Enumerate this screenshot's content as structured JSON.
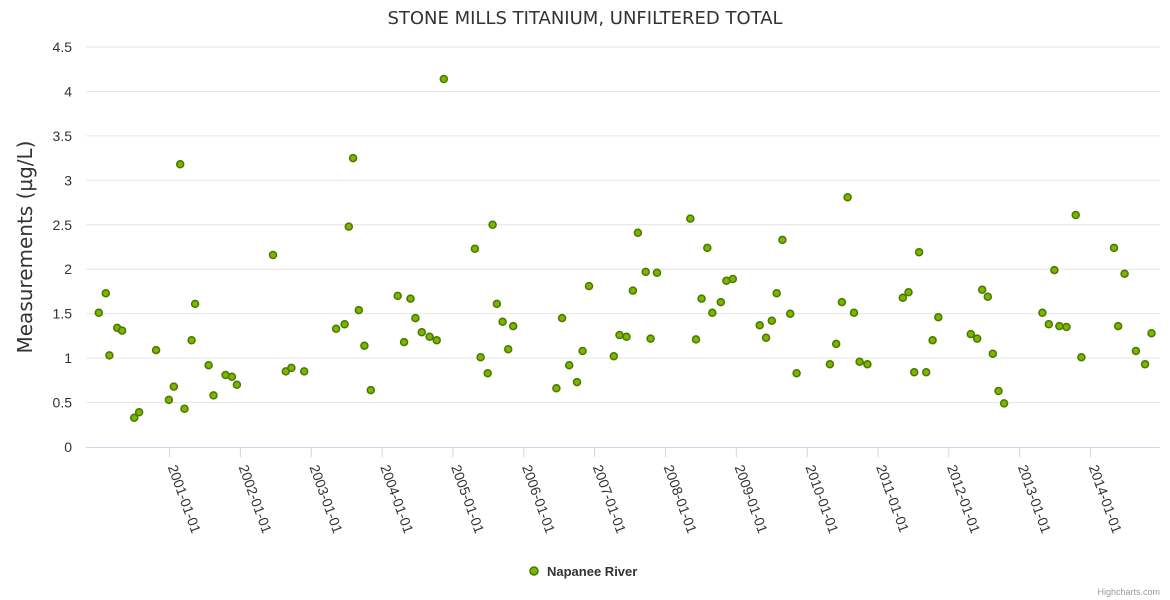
{
  "chart_data": {
    "type": "scatter",
    "title": "STONE MILLS TITANIUM, UNFILTERED TOTAL",
    "ylabel": "Measurements (µg/L)",
    "xlabel": "",
    "ylim": [
      0,
      4.5
    ],
    "yticks": [
      "0",
      "0.5",
      "1",
      "1.5",
      "2",
      "2.5",
      "3",
      "3.5",
      "4",
      "4.5"
    ],
    "xlim": [
      1999.82,
      2014.98
    ],
    "xticks": [
      {
        "year": 2001,
        "label": "2001-01-01"
      },
      {
        "year": 2002,
        "label": "2002-01-01"
      },
      {
        "year": 2003,
        "label": "2003-01-01"
      },
      {
        "year": 2004,
        "label": "2004-01-01"
      },
      {
        "year": 2005,
        "label": "2005-01-01"
      },
      {
        "year": 2006,
        "label": "2006-01-01"
      },
      {
        "year": 2007,
        "label": "2007-01-01"
      },
      {
        "year": 2008,
        "label": "2008-01-01"
      },
      {
        "year": 2009,
        "label": "2009-01-01"
      },
      {
        "year": 2010,
        "label": "2010-01-01"
      },
      {
        "year": 2011,
        "label": "2011-01-01"
      },
      {
        "year": 2012,
        "label": "2012-01-01"
      },
      {
        "year": 2013,
        "label": "2013-01-01"
      },
      {
        "year": 2014,
        "label": "2014-01-01"
      }
    ],
    "grid": true,
    "legend_position": "bottom-center",
    "series": [
      {
        "name": "Napanee River",
        "color": "#7cb500",
        "border_color": "#4a7800",
        "points": [
          [
            2000.0,
            1.51
          ],
          [
            2000.1,
            1.73
          ],
          [
            2000.15,
            1.03
          ],
          [
            2000.26,
            1.34
          ],
          [
            2000.33,
            1.31
          ],
          [
            2000.5,
            0.33
          ],
          [
            2000.57,
            0.39
          ],
          [
            2000.81,
            1.09
          ],
          [
            2000.99,
            0.53
          ],
          [
            2001.06,
            0.68
          ],
          [
            2001.15,
            3.18
          ],
          [
            2001.21,
            0.43
          ],
          [
            2001.31,
            1.2
          ],
          [
            2001.36,
            1.61
          ],
          [
            2001.55,
            0.92
          ],
          [
            2001.62,
            0.58
          ],
          [
            2001.79,
            0.81
          ],
          [
            2001.88,
            0.79
          ],
          [
            2001.95,
            0.7
          ],
          [
            2002.46,
            2.16
          ],
          [
            2002.64,
            0.85
          ],
          [
            2002.72,
            0.89
          ],
          [
            2002.9,
            0.85
          ],
          [
            2003.35,
            1.33
          ],
          [
            2003.47,
            1.38
          ],
          [
            2003.53,
            2.48
          ],
          [
            2003.59,
            3.25
          ],
          [
            2003.67,
            1.54
          ],
          [
            2003.75,
            1.14
          ],
          [
            2003.84,
            0.64
          ],
          [
            2004.22,
            1.7
          ],
          [
            2004.31,
            1.18
          ],
          [
            2004.4,
            1.67
          ],
          [
            2004.47,
            1.45
          ],
          [
            2004.56,
            1.29
          ],
          [
            2004.67,
            1.24
          ],
          [
            2004.77,
            1.2
          ],
          [
            2004.87,
            4.14
          ],
          [
            2005.31,
            2.23
          ],
          [
            2005.39,
            1.01
          ],
          [
            2005.49,
            0.83
          ],
          [
            2005.56,
            2.5
          ],
          [
            2005.62,
            1.61
          ],
          [
            2005.7,
            1.41
          ],
          [
            2005.78,
            1.1
          ],
          [
            2005.85,
            1.36
          ],
          [
            2006.46,
            0.66
          ],
          [
            2006.54,
            1.45
          ],
          [
            2006.64,
            0.92
          ],
          [
            2006.75,
            0.73
          ],
          [
            2006.83,
            1.08
          ],
          [
            2006.92,
            1.81
          ],
          [
            2007.27,
            1.02
          ],
          [
            2007.35,
            1.26
          ],
          [
            2007.45,
            1.24
          ],
          [
            2007.54,
            1.76
          ],
          [
            2007.61,
            2.41
          ],
          [
            2007.72,
            1.97
          ],
          [
            2007.79,
            1.22
          ],
          [
            2007.88,
            1.96
          ],
          [
            2008.35,
            2.57
          ],
          [
            2008.43,
            1.21
          ],
          [
            2008.51,
            1.67
          ],
          [
            2008.59,
            2.24
          ],
          [
            2008.66,
            1.51
          ],
          [
            2008.78,
            1.63
          ],
          [
            2008.86,
            1.87
          ],
          [
            2008.95,
            1.89
          ],
          [
            2009.33,
            1.37
          ],
          [
            2009.42,
            1.23
          ],
          [
            2009.5,
            1.42
          ],
          [
            2009.57,
            1.73
          ],
          [
            2009.65,
            2.33
          ],
          [
            2009.76,
            1.5
          ],
          [
            2009.85,
            0.83
          ],
          [
            2010.32,
            0.93
          ],
          [
            2010.41,
            1.16
          ],
          [
            2010.49,
            1.63
          ],
          [
            2010.57,
            2.81
          ],
          [
            2010.66,
            1.51
          ],
          [
            2010.74,
            0.96
          ],
          [
            2010.85,
            0.93
          ],
          [
            2011.35,
            1.68
          ],
          [
            2011.43,
            1.74
          ],
          [
            2011.51,
            0.84
          ],
          [
            2011.58,
            2.19
          ],
          [
            2011.68,
            0.84
          ],
          [
            2011.77,
            1.2
          ],
          [
            2011.85,
            1.46
          ],
          [
            2012.31,
            1.27
          ],
          [
            2012.4,
            1.22
          ],
          [
            2012.47,
            1.77
          ],
          [
            2012.55,
            1.69
          ],
          [
            2012.62,
            1.05
          ],
          [
            2012.7,
            0.63
          ],
          [
            2012.78,
            0.49
          ],
          [
            2013.32,
            1.51
          ],
          [
            2013.41,
            1.38
          ],
          [
            2013.49,
            1.99
          ],
          [
            2013.56,
            1.36
          ],
          [
            2013.66,
            1.35
          ],
          [
            2013.79,
            2.61
          ],
          [
            2013.87,
            1.01
          ],
          [
            2014.33,
            2.24
          ],
          [
            2014.39,
            1.36
          ],
          [
            2014.48,
            1.95
          ],
          [
            2014.64,
            1.08
          ],
          [
            2014.77,
            0.93
          ],
          [
            2014.86,
            1.28
          ]
        ]
      }
    ]
  },
  "credits": "Highcharts.com"
}
